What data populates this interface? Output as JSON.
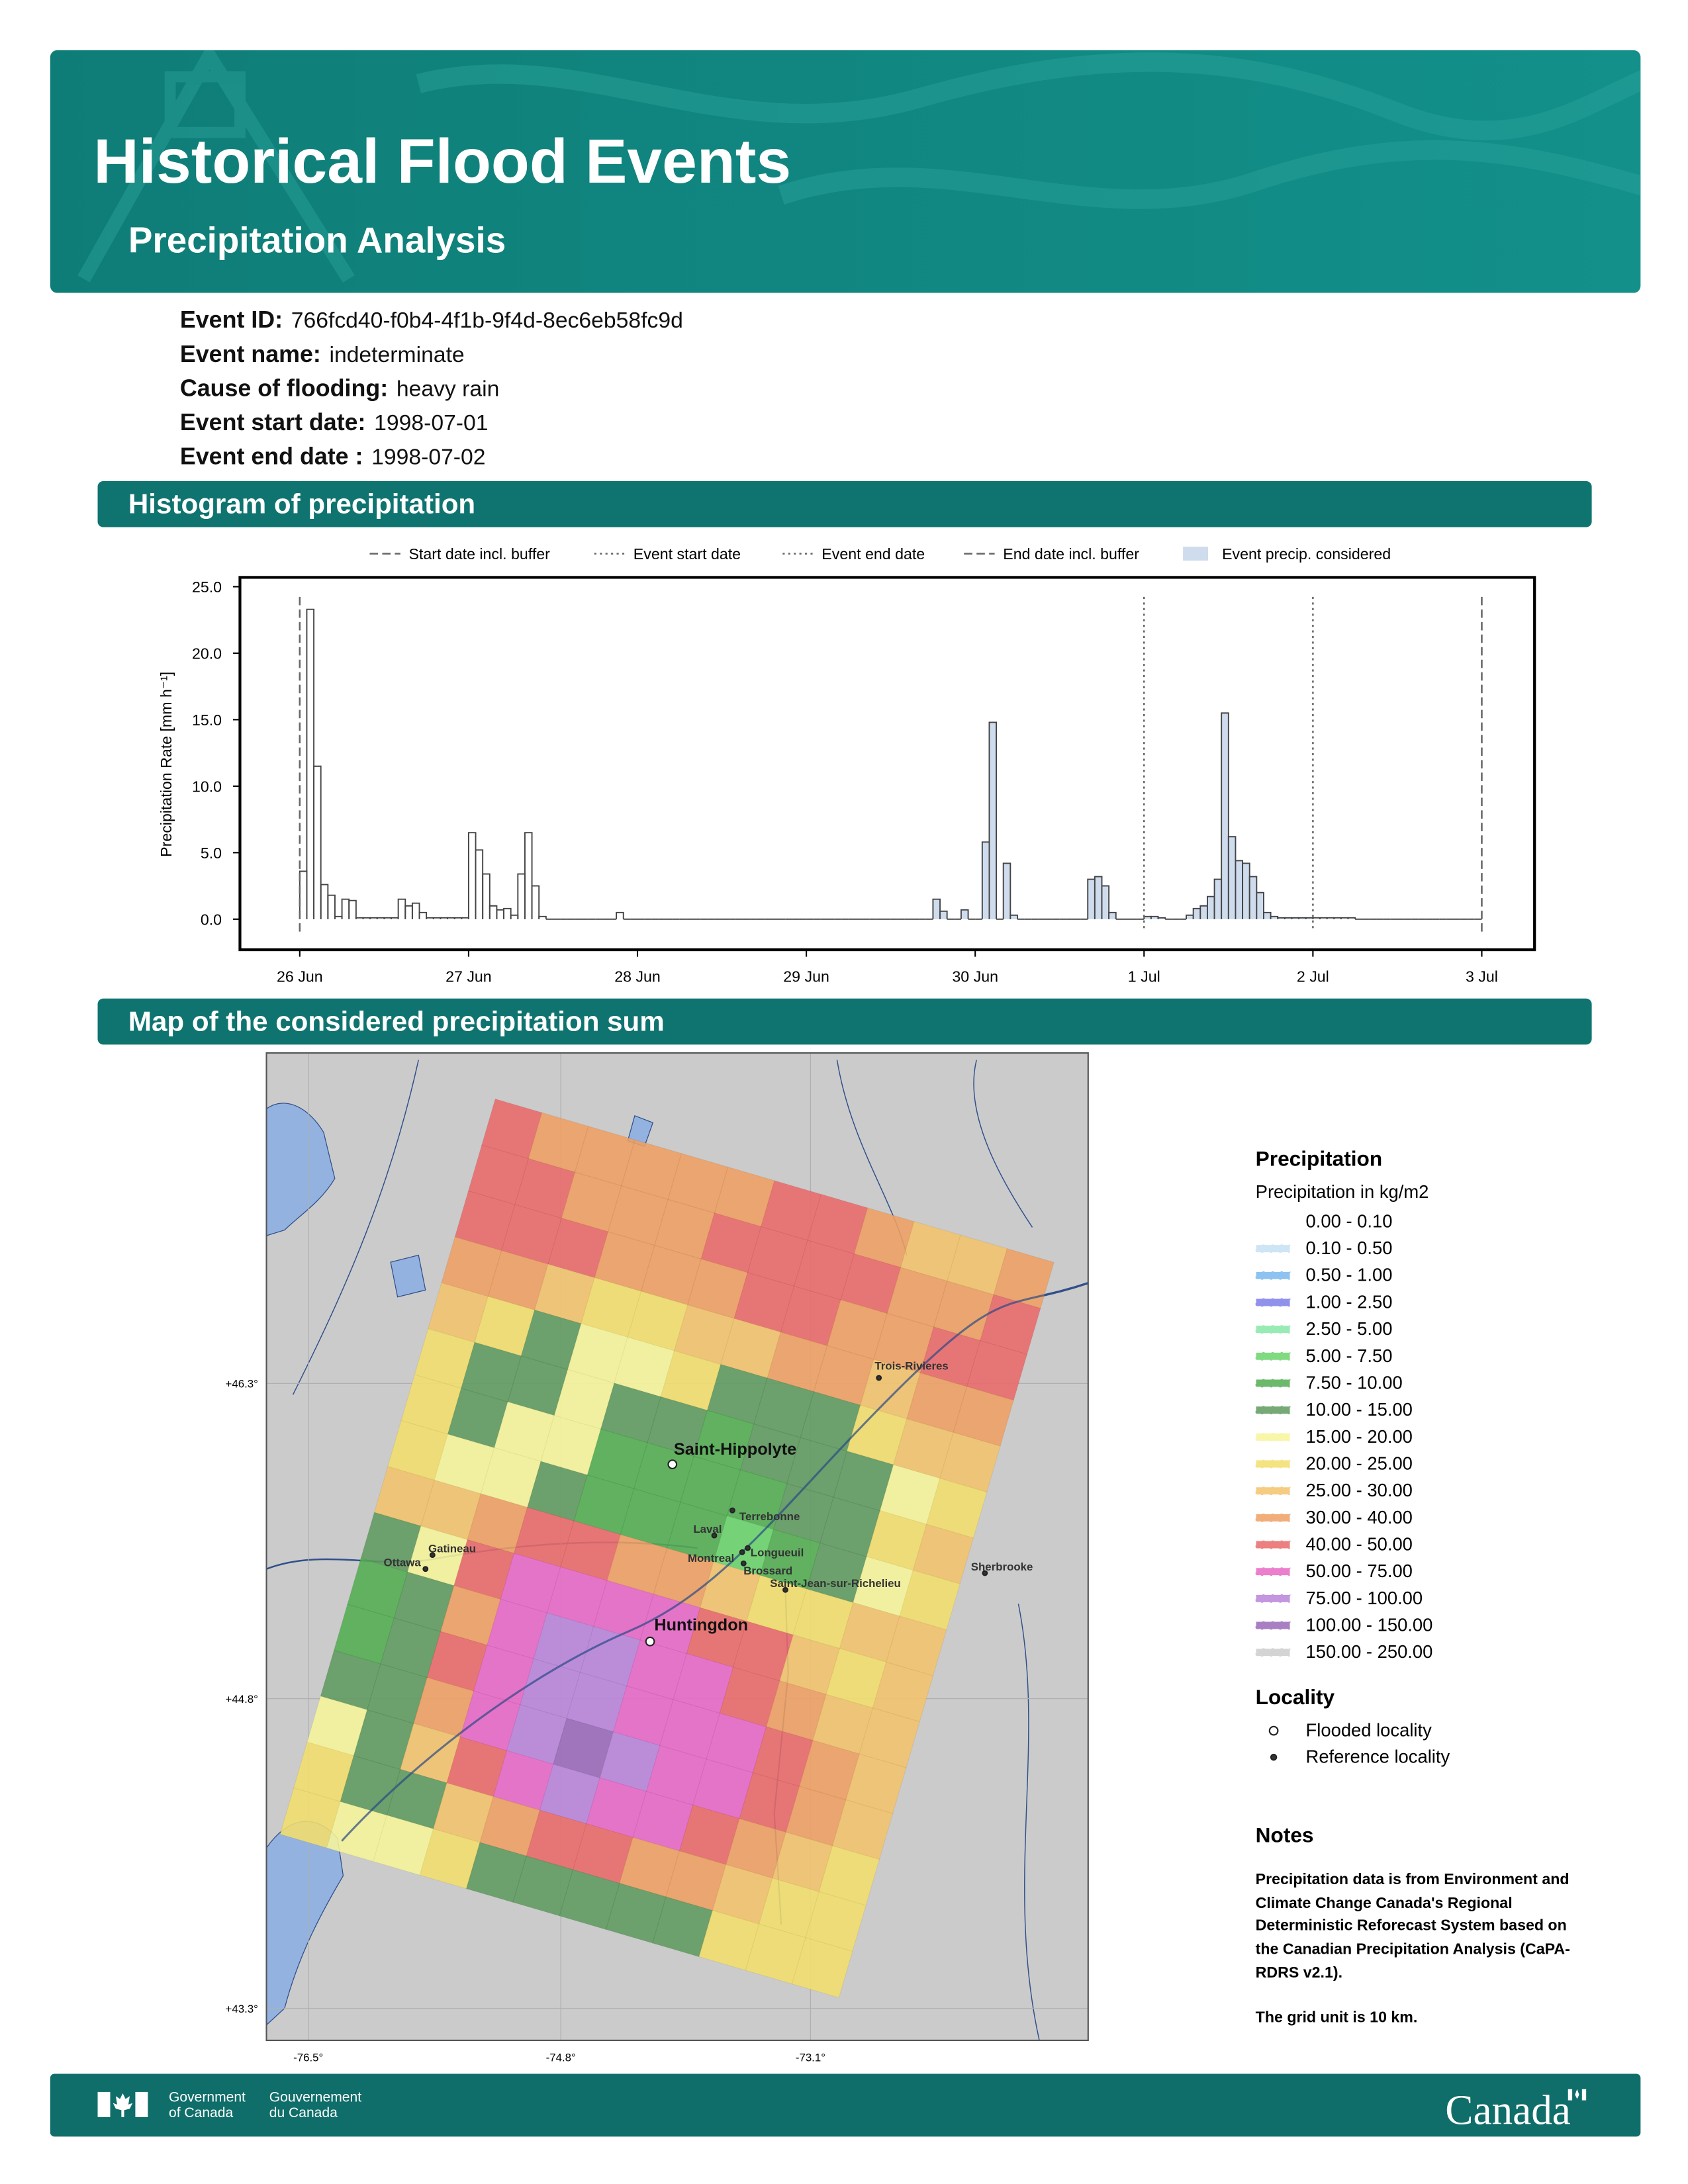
{
  "header": {
    "title": "Historical Flood Events",
    "subtitle": "Precipitation Analysis"
  },
  "event": [
    {
      "label": "Event ID:",
      "value": "766fcd40-f0b4-4f1b-9f4d-8ec6eb58fc9d"
    },
    {
      "label": "Event name:",
      "value": "indeterminate"
    },
    {
      "label": "Cause of flooding:",
      "value": "heavy rain"
    },
    {
      "label": "Event start date:",
      "value": "1998-07-01"
    },
    {
      "label": "Event end date :",
      "value": "1998-07-02"
    }
  ],
  "sections": [
    "Histogram of precipitation",
    "Map of the considered precipitation sum"
  ],
  "chart_data": {
    "type": "histogram",
    "ylabel": "Precipitation Rate [mm h⁻¹]",
    "xlim": [
      -8.5,
      175.5
    ],
    "ylim": [
      -2.3,
      25.7
    ],
    "xticks": [
      {
        "value": 0,
        "label": "26 Jun"
      },
      {
        "value": 24,
        "label": "27 Jun"
      },
      {
        "value": 48,
        "label": "28 Jun"
      },
      {
        "value": 72,
        "label": "29 Jun"
      },
      {
        "value": 96,
        "label": "30 Jun"
      },
      {
        "value": 120,
        "label": "1 Jul"
      },
      {
        "value": 144,
        "label": "2 Jul"
      },
      {
        "value": 168,
        "label": "3 Jul"
      }
    ],
    "yticks": [
      {
        "value": 0,
        "label": "0.0"
      },
      {
        "value": 5,
        "label": "5.0"
      },
      {
        "value": 10,
        "label": "10.0"
      },
      {
        "value": 15,
        "label": "15.0"
      },
      {
        "value": 20,
        "label": "20.0"
      },
      {
        "value": 25,
        "label": "25.0"
      }
    ],
    "edgecolor": "#444444",
    "vlines": [
      {
        "label": "Start date incl. buffer",
        "value": 0,
        "style": "dashed"
      },
      {
        "label": "Event start date",
        "value": 120,
        "style": "dotted"
      },
      {
        "label": "Event end date",
        "value": 144,
        "style": "dotted"
      },
      {
        "label": "End date incl. buffer",
        "value": 168,
        "style": "dashed"
      }
    ],
    "series": [
      {
        "bins": [
          0,
          1,
          2,
          3,
          4,
          5,
          6,
          7,
          8,
          9,
          10,
          11,
          12,
          13,
          14,
          15,
          16,
          17,
          18,
          19,
          20,
          21,
          22,
          23,
          24,
          25,
          26,
          27,
          28,
          29,
          30,
          31,
          32,
          33,
          34,
          35,
          36,
          37,
          38,
          39,
          40,
          41,
          42,
          43,
          44,
          45,
          46,
          47,
          48,
          49,
          50,
          51,
          52,
          53,
          54,
          55,
          56,
          57,
          58,
          59,
          60,
          61,
          62,
          63,
          64,
          65,
          66,
          67,
          68,
          69,
          70,
          71,
          72,
          73,
          74,
          75,
          76,
          77,
          78,
          79,
          80,
          81,
          82,
          83,
          84,
          85,
          86,
          87,
          88,
          89,
          90
        ],
        "values": [
          3.6,
          23.3,
          11.5,
          2.6,
          1.8,
          0.2,
          1.5,
          1.4,
          0.1,
          0.1,
          0.1,
          0.1,
          0.1,
          0.1,
          1.5,
          1.0,
          1.2,
          0.5,
          0.1,
          0.1,
          0.1,
          0.1,
          0.1,
          0.1,
          6.5,
          5.2,
          3.4,
          1.0,
          0.7,
          0.8,
          0.3,
          3.4,
          6.5,
          2.5,
          0.2,
          0,
          0,
          0,
          0,
          0,
          0,
          0,
          0,
          0,
          0,
          0.5,
          0,
          0,
          0,
          0,
          0,
          0,
          0,
          0,
          0,
          0,
          0,
          0,
          0,
          0,
          0,
          0,
          0,
          0,
          0,
          0,
          0,
          0,
          0,
          0,
          0,
          0,
          0,
          0,
          0,
          0,
          0,
          0,
          0,
          0,
          0,
          0,
          0,
          0,
          0,
          0,
          0,
          0,
          0,
          0
        ]
      },
      {
        "bins": [
          144,
          145,
          146,
          147,
          148,
          149,
          150,
          151,
          152,
          153,
          154,
          155,
          156,
          157,
          158,
          159,
          160,
          161,
          162,
          163,
          164,
          165,
          166,
          167,
          168
        ],
        "values": [
          0.1,
          0.1,
          0.1,
          0.1,
          0.1,
          0.1,
          0,
          0,
          0,
          0,
          0,
          0,
          0,
          0,
          0,
          0,
          0,
          0,
          0,
          0,
          0,
          0,
          0,
          0
        ]
      },
      {
        "name": "Event precip. considered",
        "color": "#cfdcee",
        "bins": [
          90,
          91,
          92,
          93,
          94,
          95,
          96,
          97,
          98,
          99,
          100,
          101,
          102,
          103,
          104,
          105,
          106,
          107,
          108,
          109,
          110,
          111,
          112,
          113,
          114,
          115,
          116,
          117,
          118,
          119,
          120,
          121,
          122,
          123,
          124,
          125,
          126,
          127,
          128,
          129,
          130,
          131,
          132,
          133,
          134,
          135,
          136,
          137,
          138,
          139,
          140,
          141,
          142,
          143,
          144
        ],
        "values": [
          1.5,
          0.6,
          0,
          0,
          0.7,
          0,
          0,
          5.8,
          14.8,
          0,
          4.2,
          0.3,
          0,
          0,
          0,
          0,
          0,
          0,
          0,
          0,
          0,
          0,
          3.0,
          3.2,
          2.5,
          0.5,
          0,
          0,
          0,
          0,
          0.2,
          0.2,
          0.1,
          0,
          0,
          0,
          0.3,
          0.8,
          1.0,
          1.7,
          3.0,
          15.5,
          6.2,
          4.4,
          4.2,
          3.2,
          2.0,
          0.5,
          0.2,
          0.1,
          0.1,
          0.1,
          0.1,
          0.1
        ]
      }
    ]
  },
  "map": {
    "lat_labels": [
      "+46.3°",
      "+44.8°",
      "+43.3°"
    ],
    "lon_labels": [
      "-76.5°",
      "-74.8°",
      "-73.1°"
    ],
    "grid": [
      [
        12,
        11,
        11,
        11,
        11,
        11,
        12,
        12,
        11,
        10,
        10,
        11
      ],
      [
        12,
        12,
        11,
        11,
        11,
        12,
        12,
        12,
        12,
        11,
        11,
        12
      ],
      [
        12,
        12,
        12,
        11,
        11,
        11,
        12,
        12,
        11,
        11,
        12,
        12
      ],
      [
        11,
        11,
        10,
        9,
        9,
        10,
        10,
        11,
        11,
        10,
        11,
        11
      ],
      [
        10,
        9,
        7,
        8,
        8,
        9,
        7,
        7,
        7,
        9,
        10,
        10
      ],
      [
        9,
        7,
        7,
        8,
        7,
        7,
        6,
        7,
        7,
        7,
        8,
        9
      ],
      [
        9,
        7,
        8,
        8,
        6,
        6,
        6,
        6,
        7,
        7,
        9,
        10
      ],
      [
        9,
        8,
        8,
        7,
        6,
        6,
        6,
        5,
        6,
        7,
        8,
        9
      ],
      [
        10,
        10,
        11,
        12,
        12,
        11,
        11,
        10,
        9,
        9,
        10,
        10
      ],
      [
        7,
        8,
        12,
        13,
        13,
        13,
        13,
        12,
        12,
        10,
        9,
        10
      ],
      [
        6,
        7,
        11,
        13,
        14,
        14,
        13,
        13,
        12,
        11,
        10,
        10
      ],
      [
        6,
        7,
        12,
        13,
        14,
        14,
        13,
        13,
        13,
        12,
        11,
        10
      ],
      [
        7,
        7,
        11,
        13,
        14,
        15,
        14,
        13,
        13,
        12,
        11,
        10
      ],
      [
        8,
        7,
        10,
        12,
        13,
        14,
        13,
        13,
        12,
        11,
        10,
        9
      ],
      [
        9,
        7,
        7,
        10,
        11,
        12,
        12,
        11,
        11,
        10,
        9,
        9
      ],
      [
        9,
        8,
        8,
        9,
        7,
        7,
        7,
        7,
        7,
        9,
        9,
        9
      ]
    ],
    "places": [
      {
        "name": "Saint-Hippolyte",
        "type": "flooded"
      },
      {
        "name": "Huntingdon",
        "type": "flooded"
      },
      {
        "name": "Trois-Rivieres",
        "type": "reference"
      },
      {
        "name": "Terrebonne",
        "type": "reference"
      },
      {
        "name": "Laval",
        "type": "reference"
      },
      {
        "name": "Montreal",
        "type": "reference"
      },
      {
        "name": "Longueuil",
        "type": "reference"
      },
      {
        "name": "Brossard",
        "type": "reference"
      },
      {
        "name": "Saint-Jean-sur-Richelieu",
        "type": "reference"
      },
      {
        "name": "Sherbrooke",
        "type": "reference"
      },
      {
        "name": "Gatineau",
        "type": "reference"
      },
      {
        "name": "Ottawa",
        "type": "reference"
      }
    ]
  },
  "legend": {
    "title": "Precipitation",
    "subtitle": "Precipitation in kg/m2",
    "items": [
      {
        "label": "0.00 - 0.10",
        "color": "#ffffff"
      },
      {
        "label": "0.10 - 0.50",
        "color": "#c6e0f5"
      },
      {
        "label": "0.50 - 1.00",
        "color": "#7ab8ee"
      },
      {
        "label": "1.00 - 2.50",
        "color": "#7c7cea"
      },
      {
        "label": "2.50 - 5.00",
        "color": "#86e8a8"
      },
      {
        "label": "5.00 - 7.50",
        "color": "#6ad36a"
      },
      {
        "label": "7.50 - 10.00",
        "color": "#52ad52"
      },
      {
        "label": "10.00 - 15.00",
        "color": "#5e9a5e"
      },
      {
        "label": "15.00 - 20.00",
        "color": "#f6f59a"
      },
      {
        "label": "20.00 - 25.00",
        "color": "#f3de6c"
      },
      {
        "label": "25.00 - 30.00",
        "color": "#f3c36c"
      },
      {
        "label": "30.00 - 40.00",
        "color": "#ee9f63"
      },
      {
        "label": "40.00 - 50.00",
        "color": "#e96a6a"
      },
      {
        "label": "50.00 - 75.00",
        "color": "#e768c6"
      },
      {
        "label": "75.00 - 100.00",
        "color": "#b884d9"
      },
      {
        "label": "100.00 - 150.00",
        "color": "#9a69b8"
      },
      {
        "label": "150.00 - 250.00",
        "color": "#cccccc"
      }
    ]
  },
  "locality": {
    "title": "Locality",
    "items": [
      {
        "label": "Flooded locality",
        "type": "flooded"
      },
      {
        "label": "Reference locality",
        "type": "reference"
      }
    ]
  },
  "notes": {
    "title": "Notes",
    "lines": [
      "Precipitation data is from Environment and",
      "Climate Change Canada's Regional",
      "Deterministic Reforecast System based on",
      "the Canadian Precipitation Analysis (CaPA-",
      "RDRS v2.1).",
      "The grid unit is 10 km."
    ]
  },
  "footer": {
    "en": [
      "Government",
      "of Canada"
    ],
    "fr": [
      "Gouvernement",
      "du Canada"
    ],
    "wordmark": "Canada"
  }
}
